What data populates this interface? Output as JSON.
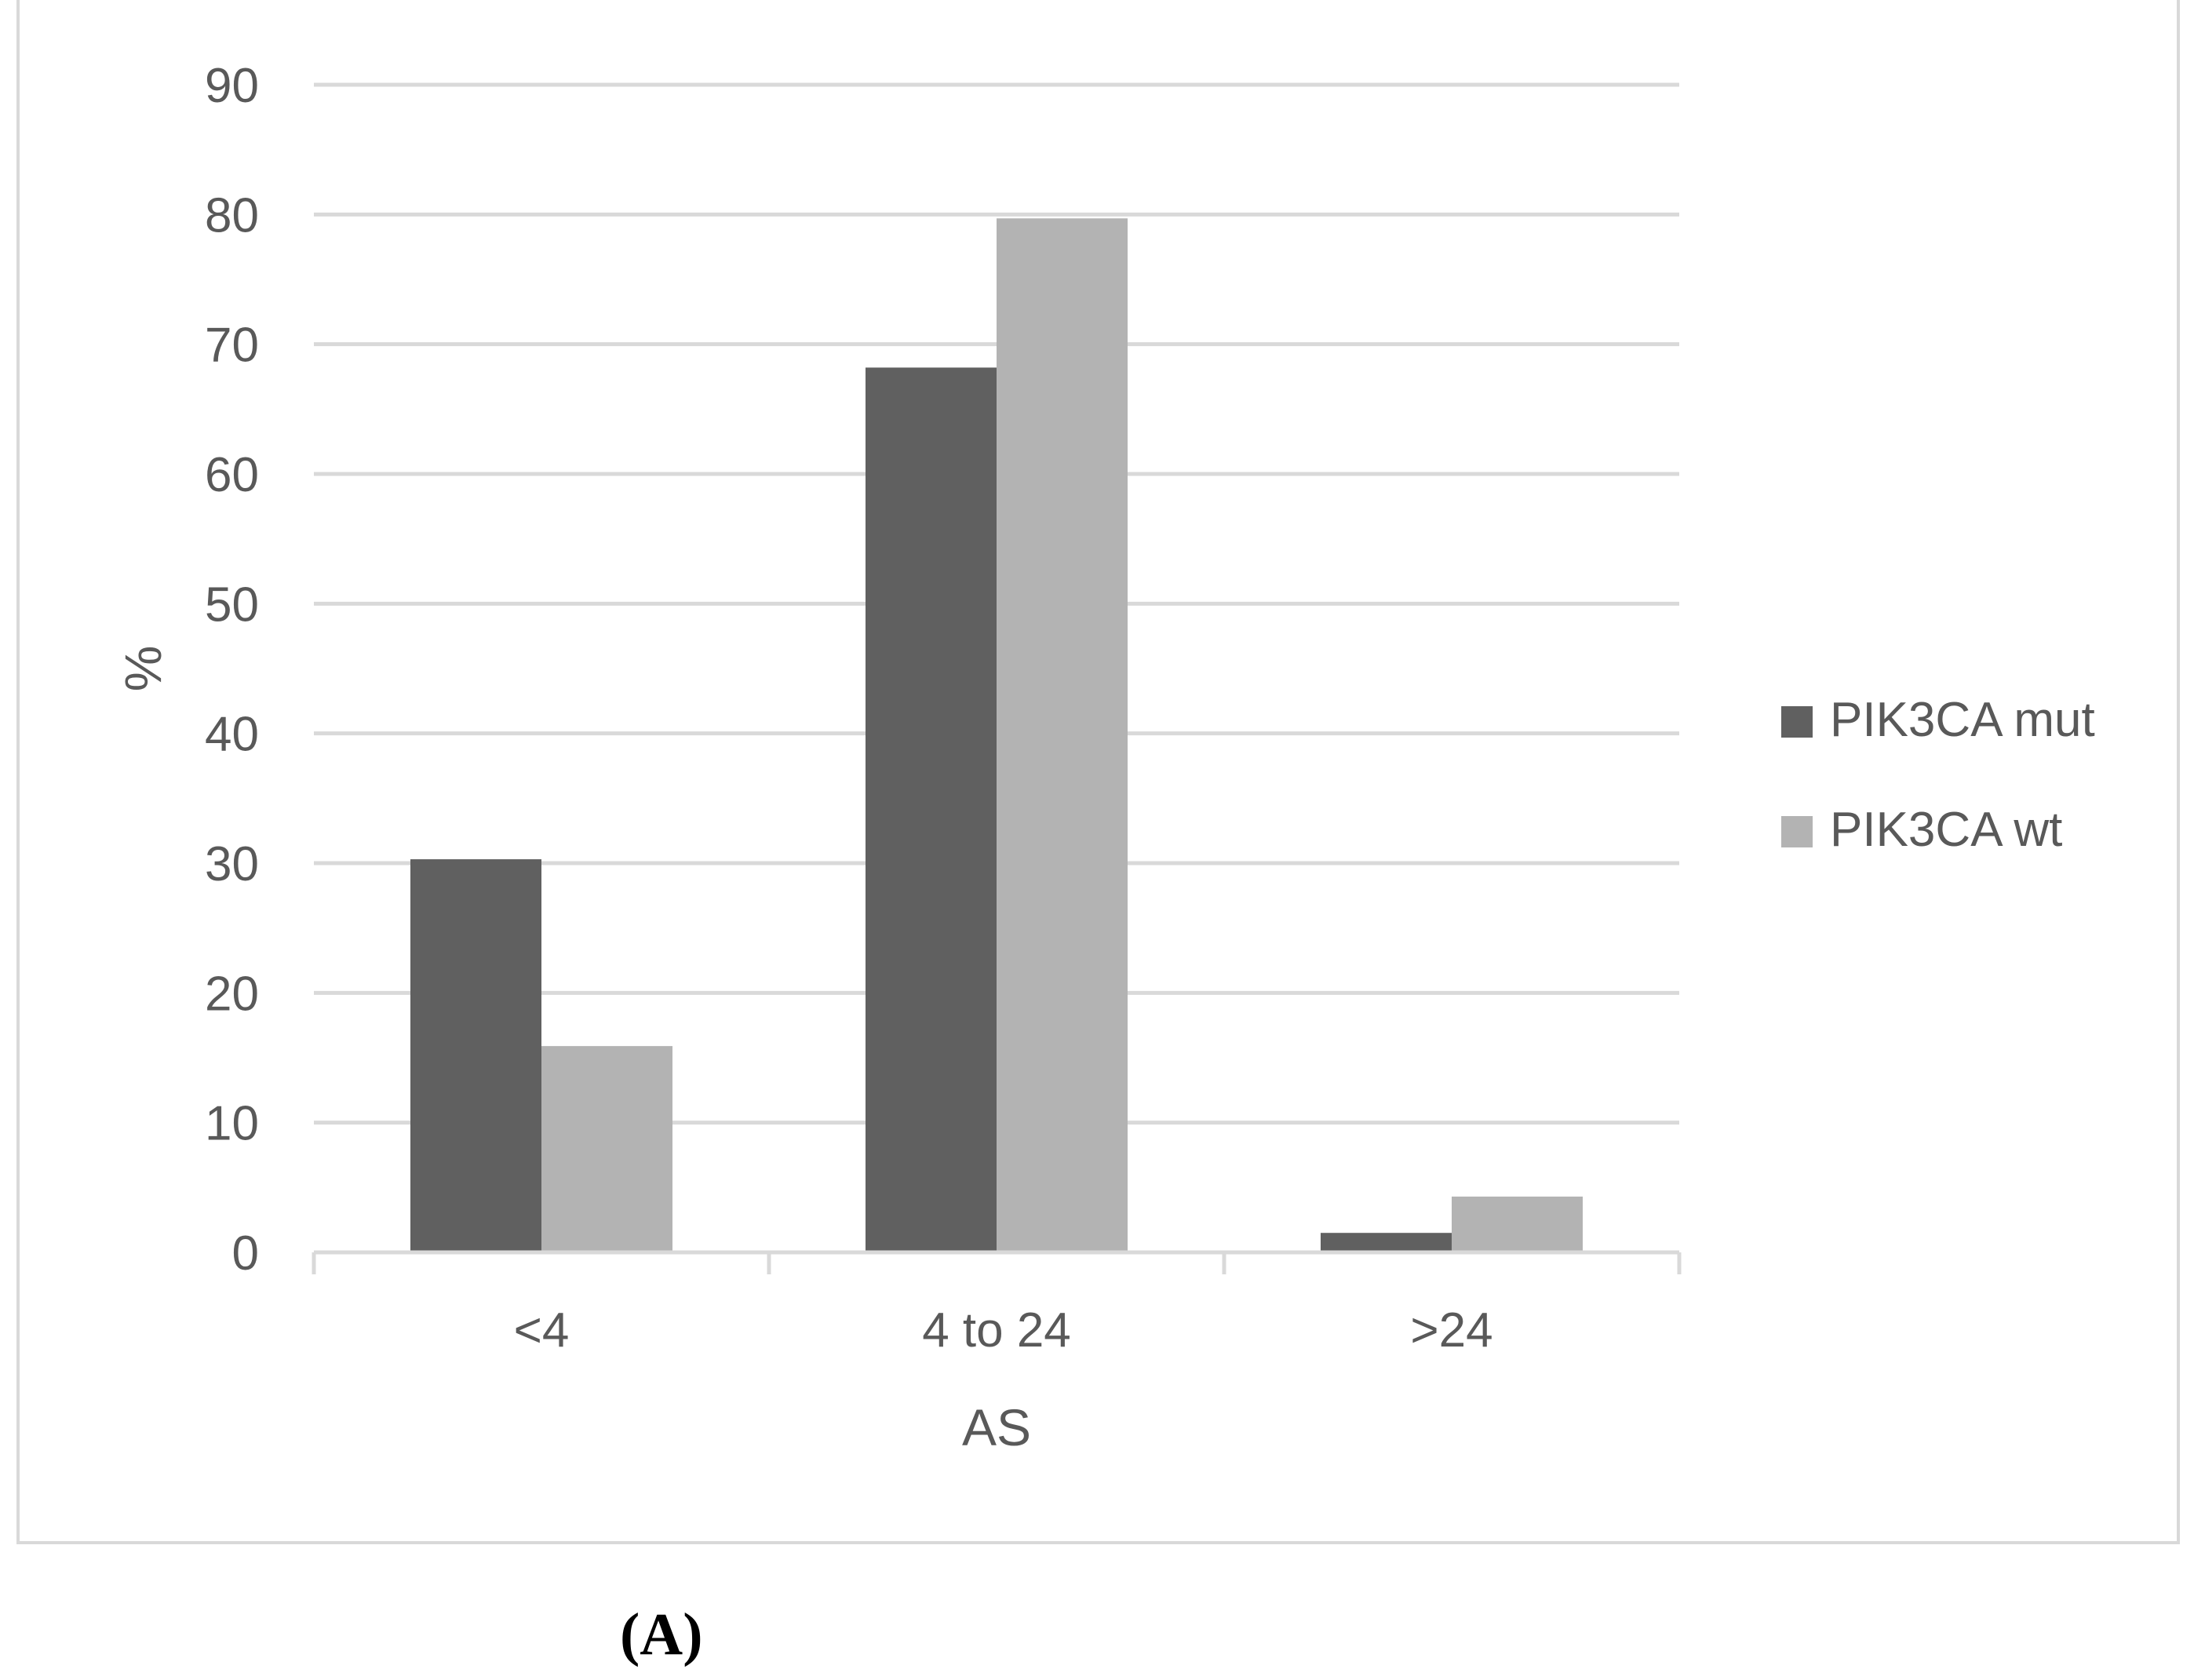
{
  "chart_data": {
    "type": "bar",
    "categories": [
      "<4",
      "4 to 24",
      ">24"
    ],
    "series": [
      {
        "name": "PIK3CA mut",
        "values": [
          30.3,
          68.2,
          1.5
        ],
        "color": "#606060"
      },
      {
        "name": "PIK3CA wt",
        "values": [
          15.9,
          79.7,
          4.3
        ],
        "color": "#b3b3b3"
      }
    ],
    "xlabel": "AS",
    "ylabel": "%",
    "ylim": [
      0,
      90
    ],
    "yticks": [
      0,
      10,
      20,
      30,
      40,
      50,
      60,
      70,
      80,
      90
    ],
    "grid": true,
    "legend_position": "right"
  },
  "panel_label": "(A)"
}
